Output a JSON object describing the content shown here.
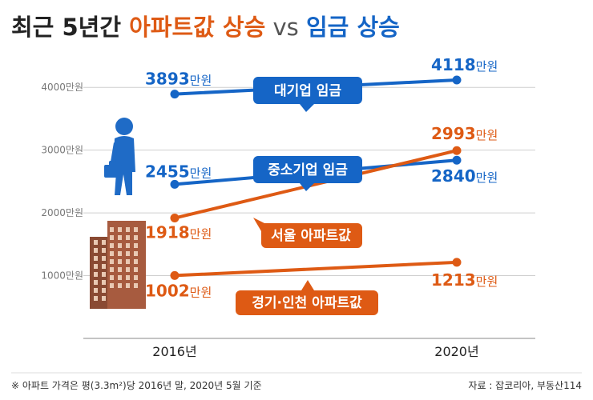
{
  "title": {
    "part1": "최근 5년간 ",
    "part2": "아파트값 상승",
    "part3": " vs ",
    "part4": "임금 상승"
  },
  "colors": {
    "blue": "#1565c6",
    "orange": "#de5a14",
    "text": "#222222",
    "grid": "#cfcfcf",
    "building": "#8a4a33"
  },
  "footnote": "※ 아파트 가격은 평(3.3m²)당 2016년 말, 2020년 5월 기준",
  "source": "자료 : 잡코리아, 부동산114",
  "icons": [
    "businessman-icon",
    "apartment-building-icon"
  ],
  "chart_data": {
    "type": "line",
    "categories": [
      "2016년",
      "2020년"
    ],
    "ylim": [
      0,
      4500
    ],
    "y_ticks": [
      1000,
      2000,
      3000,
      4000
    ],
    "y_tick_labels": [
      "1000만원",
      "2000만원",
      "3000만원",
      "4000만원"
    ],
    "grid": true,
    "unit": "만원",
    "series": [
      {
        "name": "대기업 임금",
        "values": [
          3893,
          4118
        ],
        "value_labels": [
          "3893",
          "4118"
        ],
        "color": "#1565c6"
      },
      {
        "name": "중소기업 임금",
        "values": [
          2455,
          2840
        ],
        "value_labels": [
          "2455",
          "2840"
        ],
        "color": "#1565c6"
      },
      {
        "name": "서울 아파트값",
        "values": [
          1918,
          2993
        ],
        "value_labels": [
          "1918",
          "2993"
        ],
        "color": "#de5a14"
      },
      {
        "name": "경기·인천 아파트값",
        "values": [
          1002,
          1213
        ],
        "value_labels": [
          "1002",
          "1213"
        ],
        "color": "#de5a14"
      }
    ]
  }
}
